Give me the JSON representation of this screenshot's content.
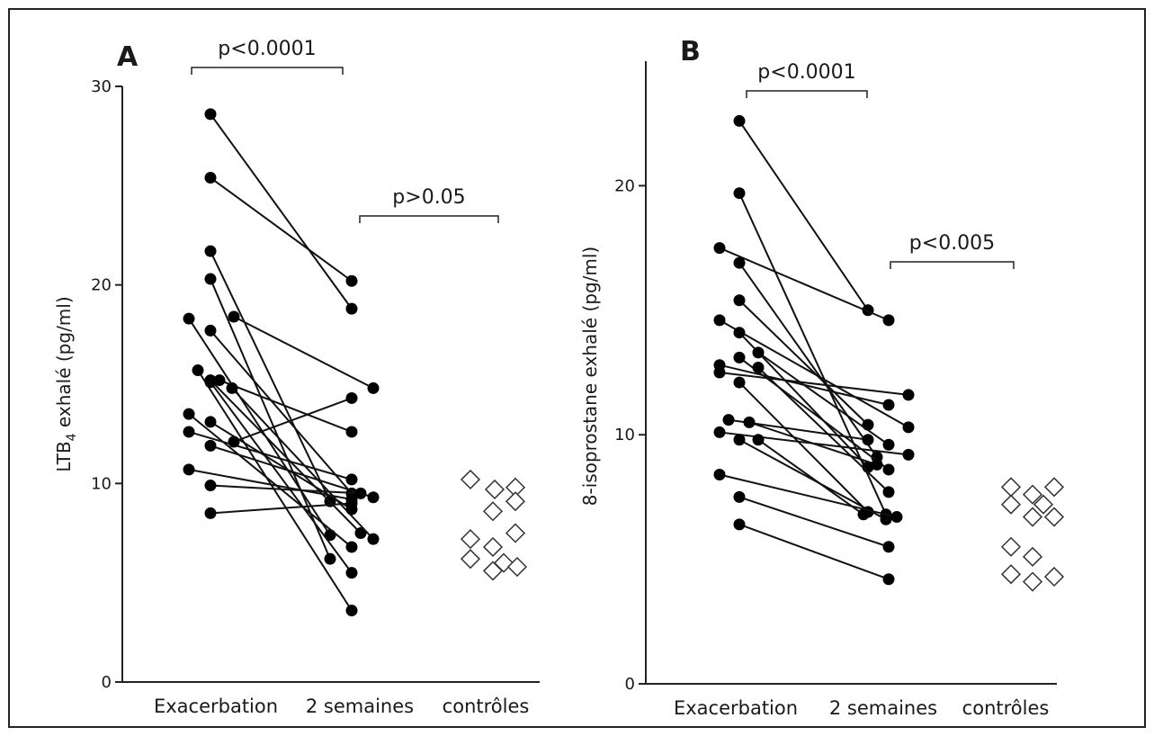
{
  "chart_data": [
    {
      "type": "scatter",
      "panel": "A",
      "ylabel": "LTB4 exhalé (pg/ml)",
      "ylabel_main": "LTB",
      "ylabel_sub": "4",
      "ylabel_rest": " exhalé (pg/ml)",
      "categories": [
        "Exacerbation",
        "2 semaines",
        "contrôles"
      ],
      "ylim": [
        0,
        30
      ],
      "yticks": [
        "0",
        "10",
        "20",
        "30"
      ],
      "comparisons": [
        {
          "from": 0,
          "to": 1,
          "label": "p<0.0001"
        },
        {
          "from": 1,
          "to": 2,
          "label": "p>0.05"
        }
      ],
      "paired": [
        {
          "before": 28.6,
          "after": 18.8
        },
        {
          "before": 25.4,
          "after": 20.2
        },
        {
          "before": 21.7,
          "after": 9.1
        },
        {
          "before": 20.3,
          "after": 6.2
        },
        {
          "before": 18.3,
          "after": 7.4
        },
        {
          "before": 18.4,
          "after": 14.8
        },
        {
          "before": 17.7,
          "after": 9.5
        },
        {
          "before": 15.7,
          "after": 3.6
        },
        {
          "before": 15.2,
          "after": 12.6
        },
        {
          "before": 15.1,
          "after": 5.5
        },
        {
          "before": 15.2,
          "after": 7.5
        },
        {
          "before": 14.8,
          "after": 7.2
        },
        {
          "before": 13.5,
          "after": 6.8
        },
        {
          "before": 13.1,
          "after": 8.7
        },
        {
          "before": 12.6,
          "after": 10.2
        },
        {
          "before": 12.1,
          "after": 14.3
        },
        {
          "before": 11.9,
          "after": 9.3
        },
        {
          "before": 10.7,
          "after": 9.2
        },
        {
          "before": 9.9,
          "after": 9.5
        },
        {
          "before": 8.5,
          "after": 9.0
        }
      ],
      "controls": [
        10.2,
        9.8,
        9.7,
        9.1,
        8.6,
        7.5,
        7.2,
        6.8,
        6.2,
        6.0,
        5.8,
        5.6
      ]
    },
    {
      "type": "scatter",
      "panel": "B",
      "ylabel": "8-isoprostane exhalé (pg/ml)",
      "ylabel_main": "8-isoprostane exhalé (pg/ml)",
      "ylabel_sub": "",
      "ylabel_rest": "",
      "categories": [
        "Exacerbation",
        "2 semaines",
        "contrôles"
      ],
      "ylim": [
        0,
        25
      ],
      "yticks": [
        "0",
        "10",
        "20"
      ],
      "comparisons": [
        {
          "from": 0,
          "to": 1,
          "label": "p<0.0001"
        },
        {
          "from": 1,
          "to": 2,
          "label": "p<0.005"
        }
      ],
      "paired": [
        {
          "before": 22.6,
          "after": 15.0
        },
        {
          "before": 19.7,
          "after": 6.8
        },
        {
          "before": 17.5,
          "after": 14.6
        },
        {
          "before": 16.9,
          "after": 9.1
        },
        {
          "before": 15.4,
          "after": 10.4
        },
        {
          "before": 14.6,
          "after": 10.3
        },
        {
          "before": 14.1,
          "after": 8.7
        },
        {
          "before": 13.3,
          "after": 9.6
        },
        {
          "before": 13.1,
          "after": 8.6
        },
        {
          "before": 12.8,
          "after": 11.2
        },
        {
          "before": 12.7,
          "after": 7.7
        },
        {
          "before": 12.5,
          "after": 11.6
        },
        {
          "before": 12.1,
          "after": 6.9
        },
        {
          "before": 10.6,
          "after": 9.8
        },
        {
          "before": 10.5,
          "after": 8.8
        },
        {
          "before": 10.1,
          "after": 9.2
        },
        {
          "before": 9.8,
          "after": 6.6
        },
        {
          "before": 9.8,
          "after": 6.8
        },
        {
          "before": 8.4,
          "after": 6.7
        },
        {
          "before": 7.5,
          "after": 5.5
        },
        {
          "before": 6.4,
          "after": 4.2
        }
      ],
      "controls": [
        7.9,
        7.9,
        7.6,
        7.2,
        7.2,
        6.7,
        6.7,
        5.5,
        5.1,
        4.4,
        4.3,
        4.1
      ]
    }
  ]
}
